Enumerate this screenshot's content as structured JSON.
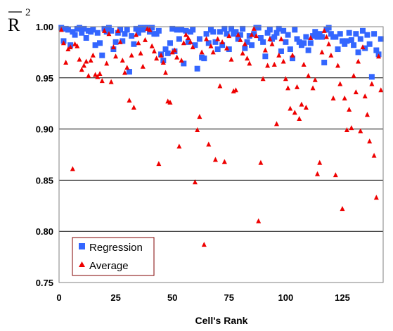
{
  "chart_data": {
    "type": "scatter",
    "title": "",
    "xlabel": "Cell's Rank",
    "ylabel": "R",
    "ylabel_superscript": "2",
    "ylabel_overbar": true,
    "xlim": [
      0,
      143
    ],
    "ylim": [
      0.75,
      1.0
    ],
    "x_ticks": [
      0,
      25,
      50,
      75,
      100,
      125
    ],
    "y_ticks": [
      0.75,
      0.8,
      0.85,
      0.9,
      0.95,
      1.0
    ],
    "x_tick_labels": [
      "0",
      "25",
      "50",
      "75",
      "100",
      "125"
    ],
    "y_tick_labels": [
      "0.75",
      "0.80",
      "0.85",
      "0.90",
      "0.95",
      "1.00"
    ],
    "grid": "horizontal",
    "legend_position": "bottom-left",
    "series": [
      {
        "name": "Regression",
        "marker": "square",
        "color": "#3366ff",
        "x": [
          1,
          2,
          3,
          4,
          5,
          6,
          7,
          8,
          9,
          10,
          11,
          12,
          13,
          14,
          15,
          16,
          17,
          18,
          19,
          20,
          21,
          22,
          23,
          24,
          25,
          26,
          27,
          28,
          29,
          30,
          31,
          32,
          33,
          34,
          35,
          36,
          37,
          38,
          39,
          40,
          41,
          42,
          43,
          44,
          45,
          46,
          47,
          48,
          49,
          50,
          51,
          52,
          53,
          54,
          55,
          56,
          57,
          58,
          59,
          60,
          61,
          62,
          63,
          64,
          65,
          66,
          67,
          68,
          69,
          70,
          71,
          72,
          73,
          74,
          75,
          76,
          77,
          78,
          79,
          80,
          81,
          82,
          83,
          84,
          85,
          86,
          87,
          88,
          89,
          90,
          91,
          92,
          93,
          94,
          95,
          96,
          97,
          98,
          99,
          100,
          101,
          102,
          103,
          104,
          105,
          106,
          107,
          108,
          109,
          110,
          111,
          112,
          113,
          114,
          115,
          116,
          117,
          118,
          119,
          120,
          121,
          122,
          123,
          124,
          125,
          126,
          127,
          128,
          129,
          130,
          131,
          132,
          133,
          134,
          135,
          136,
          137,
          138,
          139,
          140,
          141,
          142
        ],
        "values": [
          0.999,
          0.986,
          0.998,
          0.997,
          0.982,
          0.995,
          0.992,
          0.998,
          0.999,
          0.994,
          0.998,
          0.989,
          0.996,
          0.995,
          0.997,
          0.982,
          0.994,
          0.984,
          0.972,
          0.998,
          0.995,
          0.999,
          0.996,
          0.978,
          0.985,
          0.994,
          0.997,
          0.986,
          0.993,
          0.997,
          0.956,
          0.991,
          0.983,
          0.998,
          0.994,
          0.999,
          0.997,
          0.999,
          0.999,
          0.995,
          0.999,
          0.993,
          0.993,
          0.996,
          0.973,
          0.967,
          0.978,
          0.974,
          0.984,
          0.998,
          0.976,
          0.997,
          0.988,
          0.997,
          0.964,
          0.996,
          0.985,
          0.995,
          0.997,
          0.982,
          0.959,
          0.988,
          0.97,
          0.969,
          0.993,
          0.984,
          0.997,
          0.995,
          0.985,
          0.978,
          0.995,
          0.982,
          0.998,
          0.993,
          0.978,
          0.998,
          0.993,
          0.995,
          0.988,
          0.992,
          0.998,
          0.979,
          0.985,
          0.991,
          0.982,
          0.993,
          0.999,
          0.999,
          0.989,
          0.985,
          0.971,
          0.994,
          0.997,
          0.988,
          0.99,
          0.994,
          0.998,
          0.976,
          0.996,
          0.985,
          0.992,
          0.978,
          0.969,
          0.997,
          0.988,
          0.985,
          0.982,
          0.984,
          0.99,
          0.977,
          0.984,
          0.991,
          0.995,
          0.99,
          0.993,
          0.99,
          0.965,
          0.997,
          0.999,
          0.993,
          0.99,
          0.99,
          0.978,
          0.993,
          0.986,
          0.983,
          0.986,
          0.994,
          0.987,
          0.982,
          0.993,
          0.975,
          0.988,
          0.996,
          0.979,
          0.992,
          0.983,
          0.951,
          0.993,
          0.977,
          0.973,
          0.988
        ]
      },
      {
        "name": "Average",
        "marker": "triangle",
        "color": "#ee0000",
        "x": [
          1,
          2,
          3,
          4,
          5,
          6,
          7,
          8,
          9,
          10,
          11,
          12,
          13,
          14,
          15,
          16,
          17,
          18,
          19,
          20,
          21,
          22,
          23,
          24,
          25,
          26,
          27,
          28,
          29,
          30,
          31,
          32,
          33,
          34,
          35,
          36,
          37,
          38,
          39,
          40,
          41,
          42,
          43,
          44,
          45,
          46,
          47,
          48,
          49,
          50,
          51,
          52,
          53,
          54,
          55,
          56,
          57,
          58,
          59,
          60,
          61,
          62,
          63,
          64,
          65,
          66,
          67,
          68,
          69,
          70,
          71,
          72,
          73,
          74,
          75,
          76,
          77,
          78,
          79,
          80,
          81,
          82,
          83,
          84,
          85,
          86,
          87,
          88,
          89,
          90,
          91,
          92,
          93,
          94,
          95,
          96,
          97,
          98,
          99,
          100,
          101,
          102,
          103,
          104,
          105,
          106,
          107,
          108,
          109,
          110,
          111,
          112,
          113,
          114,
          115,
          116,
          117,
          118,
          119,
          120,
          121,
          122,
          123,
          124,
          125,
          126,
          127,
          128,
          129,
          130,
          131,
          132,
          133,
          134,
          135,
          136,
          137,
          138,
          139,
          140,
          141,
          142
        ],
        "values": [
          0.997,
          0.984,
          0.965,
          0.978,
          0.98,
          0.861,
          0.983,
          0.981,
          0.968,
          0.958,
          0.962,
          0.966,
          0.952,
          0.967,
          0.972,
          0.953,
          0.951,
          0.954,
          0.947,
          0.996,
          0.964,
          0.993,
          0.946,
          0.98,
          0.971,
          0.996,
          0.985,
          0.967,
          0.955,
          0.96,
          0.928,
          0.972,
          0.921,
          0.992,
          0.984,
          0.974,
          0.961,
          0.987,
          0.998,
          0.997,
          0.981,
          0.976,
          0.969,
          0.866,
          0.972,
          0.965,
          0.955,
          0.927,
          0.926,
          0.975,
          0.977,
          0.97,
          0.883,
          0.967,
          0.984,
          0.992,
          0.989,
          0.985,
          0.98,
          0.848,
          0.899,
          0.912,
          0.975,
          0.787,
          0.988,
          0.885,
          0.981,
          0.975,
          0.87,
          0.988,
          0.942,
          0.985,
          0.868,
          0.979,
          0.991,
          0.968,
          0.937,
          0.938,
          0.992,
          0.987,
          0.974,
          0.983,
          0.969,
          0.964,
          0.992,
          0.998,
          0.991,
          0.81,
          0.867,
          0.949,
          0.977,
          0.962,
          0.988,
          0.983,
          0.963,
          0.905,
          0.972,
          0.988,
          0.966,
          0.949,
          0.94,
          0.92,
          0.972,
          0.916,
          0.941,
          0.91,
          0.924,
          0.963,
          0.921,
          0.952,
          0.989,
          0.94,
          0.948,
          0.856,
          0.867,
          0.975,
          0.996,
          0.99,
          0.983,
          0.972,
          0.93,
          0.855,
          0.962,
          0.944,
          0.822,
          0.93,
          0.899,
          0.919,
          0.901,
          0.952,
          0.936,
          0.966,
          0.898,
          0.98,
          0.932,
          0.914,
          0.888,
          0.944,
          0.874,
          0.833,
          0.971,
          0.938
        ]
      }
    ]
  }
}
